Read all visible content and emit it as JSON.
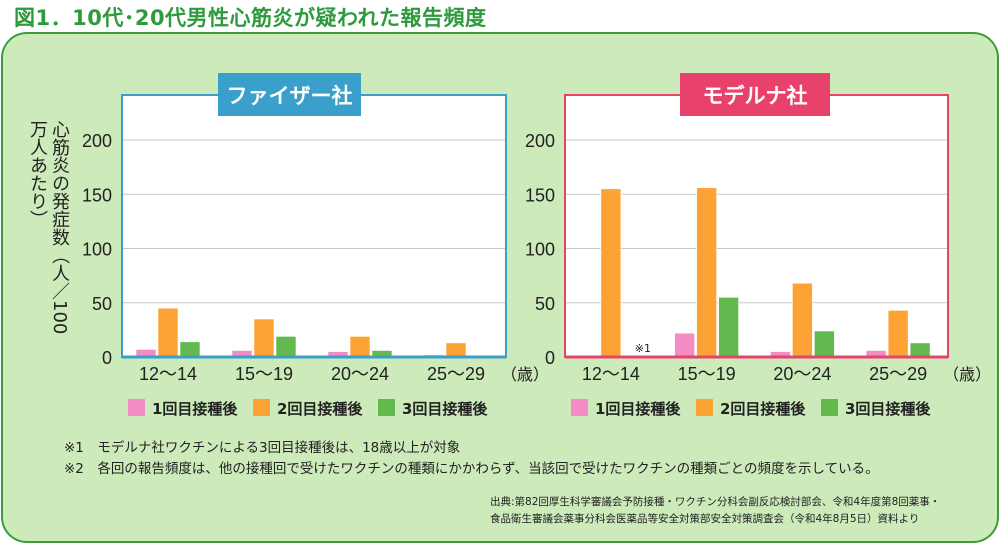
{
  "title": "図1．10代･20代男性心筋炎が疑われた報告頻度",
  "y_axis_label": [
    "心筋炎の発症数",
    "（人／100万人あたり）"
  ],
  "age_unit": "（歳）",
  "colors": {
    "dose1": "#f48bc4",
    "dose2": "#fda234",
    "dose3": "#63b94e",
    "pfizer": "#3a9fcb",
    "moderna": "#e8416b"
  },
  "chart_data": [
    {
      "type": "bar",
      "title": "ファイザー社",
      "categories": [
        "12〜14",
        "15〜19",
        "20〜24",
        "25〜29"
      ],
      "ylim": [
        0,
        240
      ],
      "yticks": [
        0,
        50,
        100,
        150,
        200
      ],
      "series": [
        {
          "name": "1回目接種後",
          "values": [
            7,
            6,
            5,
            2
          ]
        },
        {
          "name": "2回目接種後",
          "values": [
            45,
            35,
            19,
            13
          ]
        },
        {
          "name": "3回目接種後",
          "values": [
            14,
            19,
            6,
            0
          ]
        }
      ],
      "annotations": [],
      "legend": "bottom"
    },
    {
      "type": "bar",
      "title": "モデルナ社",
      "categories": [
        "12〜14",
        "15〜19",
        "20〜24",
        "25〜29"
      ],
      "ylim": [
        0,
        240
      ],
      "yticks": [
        0,
        50,
        100,
        150,
        200
      ],
      "series": [
        {
          "name": "1回目接種後",
          "values": [
            0,
            22,
            5,
            6
          ]
        },
        {
          "name": "2回目接種後",
          "values": [
            155,
            156,
            68,
            43
          ]
        },
        {
          "name": "3回目接種後",
          "values": [
            null,
            55,
            24,
            13
          ]
        }
      ],
      "annotations": [
        "※1"
      ],
      "legend": "bottom"
    }
  ],
  "notes": [
    "※1　モデルナ社ワクチンによる3回目接種後は、18歳以上が対象",
    "※2　各回の報告頻度は、他の接種回で受けたワクチンの種類にかかわらず、当該回で受けたワクチンの種類ごとの頻度を示している。"
  ],
  "source": [
    "出典:第82回厚生科学審議会予防接種・ワクチン分科会副反応検討部会、令和4年度第8回薬事・",
    "食品衛生審議会薬事分科会医薬品等安全対策部安全対策調査会（令和4年8月5日）資料より"
  ]
}
